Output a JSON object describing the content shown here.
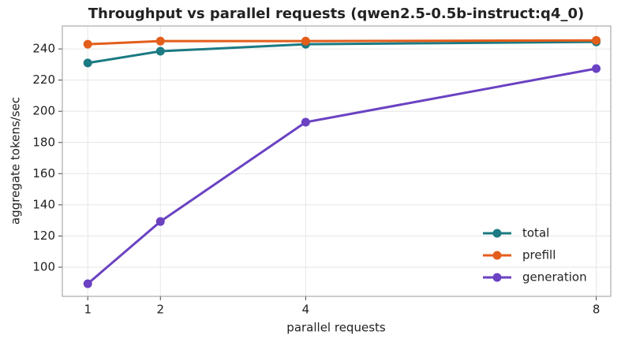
{
  "chart_data": {
    "type": "line",
    "title": "Throughput vs parallel requests (qwen2.5-0.5b-instruct:q4_0)",
    "x_label": "parallel requests",
    "y_label": "aggregate tokens/sec",
    "x": [
      1,
      2,
      4,
      8
    ],
    "series": [
      {
        "name": "total",
        "color": "#1b7a82",
        "values": [
          231,
          238.5,
          243,
          244.5
        ]
      },
      {
        "name": "prefill",
        "color": "#e35d1b",
        "values": [
          243,
          245,
          245,
          245.5
        ]
      },
      {
        "name": "generation",
        "color": "#6a42c2",
        "values": [
          89.4,
          129.3,
          193,
          227.4
        ]
      }
    ],
    "xlim": [
      0.65,
      8.2
    ],
    "ylim": [
      81.3,
      254.7
    ],
    "xticks": [
      1,
      2,
      4,
      8
    ],
    "yticks": [
      100,
      120,
      140,
      160,
      180,
      200,
      220,
      240
    ],
    "grid": true,
    "legend": "lower right"
  }
}
